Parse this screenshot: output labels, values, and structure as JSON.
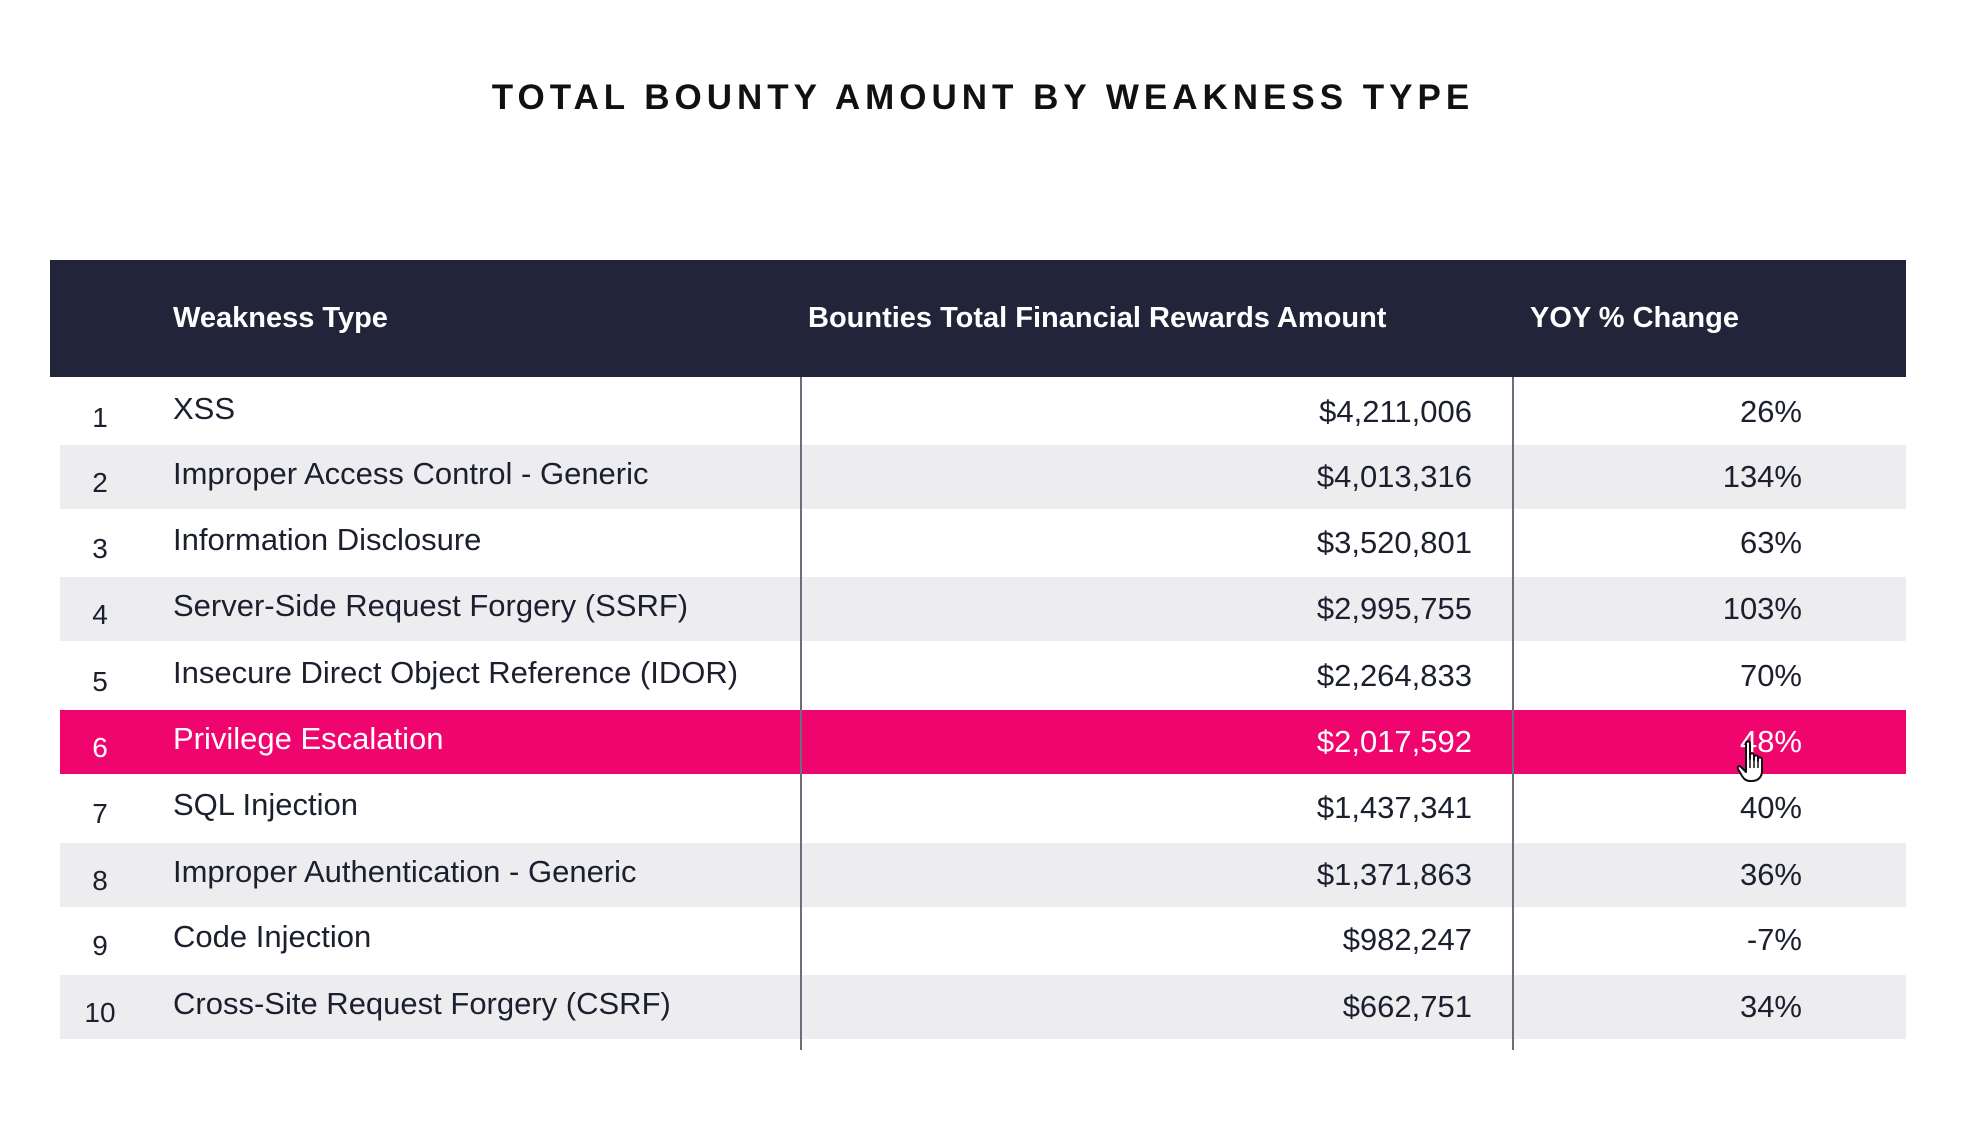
{
  "chart_data": {
    "type": "table",
    "title": "TOTAL BOUNTY AMOUNT BY WEAKNESS TYPE",
    "columns": [
      "",
      "Weakness Type",
      "Bounties Total Financial Rewards Amount",
      "YOY % Change"
    ],
    "rows": [
      {
        "rank": "1",
        "type": "XSS",
        "amount": "$4,211,006",
        "change": "26%"
      },
      {
        "rank": "2",
        "type": "Improper Access Control - Generic",
        "amount": "$4,013,316",
        "change": "134%"
      },
      {
        "rank": "3",
        "type": "Information Disclosure",
        "amount": "$3,520,801",
        "change": "63%"
      },
      {
        "rank": "4",
        "type": "Server-Side Request Forgery (SSRF)",
        "amount": "$2,995,755",
        "change": "103%"
      },
      {
        "rank": "5",
        "type": "Insecure Direct Object Reference (IDOR)",
        "amount": "$2,264,833",
        "change": "70%"
      },
      {
        "rank": "6",
        "type": "Privilege Escalation",
        "amount": "$2,017,592",
        "change": "48%"
      },
      {
        "rank": "7",
        "type": "SQL Injection",
        "amount": "$1,437,341",
        "change": "40%"
      },
      {
        "rank": "8",
        "type": "Improper Authentication - Generic",
        "amount": "$1,371,863",
        "change": "36%"
      },
      {
        "rank": "9",
        "type": "Code Injection",
        "amount": "$982,247",
        "change": "-7%"
      },
      {
        "rank": "10",
        "type": "Cross-Site Request Forgery (CSRF)",
        "amount": "$662,751",
        "change": "34%"
      }
    ],
    "highlighted_row": 6,
    "shaded_rows": [
      2,
      4,
      8,
      10
    ],
    "colors": {
      "header_bg": "#22253a",
      "header_text": "#ffffff",
      "shaded_bg": "#ededf0",
      "highlight_bg": "#f0056e"
    }
  },
  "icons": {
    "cursor": "hand-pointer-icon"
  }
}
